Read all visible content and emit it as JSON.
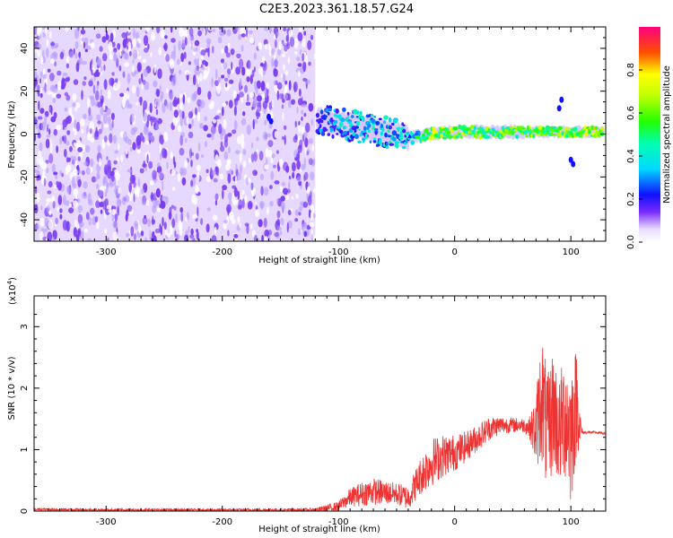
{
  "title": "C2E3.2023.361.18.57.G24",
  "colors": {
    "snr_line": "#ee3333",
    "spectro_noise": "#7a3cf2",
    "spectro_pale": "#e6d8ff"
  },
  "chart_data": [
    {
      "type": "heatmap",
      "xlabel": "Height of straight line (km)",
      "ylabel": "Frequency (Hz)",
      "xlim": [
        -362,
        130
      ],
      "ylim": [
        -50,
        50
      ],
      "xticks": [
        -300,
        -200,
        -100,
        0,
        100
      ],
      "xtick_labels": [
        "-300",
        "-200",
        "-100",
        "0",
        "100"
      ],
      "yticks": [
        -40,
        -20,
        0,
        20,
        40
      ],
      "ytick_labels": [
        "-40",
        "-20",
        "0",
        "20",
        "40"
      ],
      "noise_region_xmax": -120,
      "signal_track": [
        {
          "x": -160,
          "y": 8,
          "amp": 0.35
        },
        {
          "x": -120,
          "y": 7,
          "amp": 0.35
        },
        {
          "x": -100,
          "y": 5,
          "amp": 0.45
        },
        {
          "x": -80,
          "y": 3,
          "amp": 0.45
        },
        {
          "x": -60,
          "y": 1,
          "amp": 0.5
        },
        {
          "x": -40,
          "y": -2,
          "amp": 0.5
        },
        {
          "x": -20,
          "y": 0,
          "amp": 0.8
        },
        {
          "x": 0,
          "y": 1,
          "amp": 0.75
        },
        {
          "x": 20,
          "y": 1,
          "amp": 0.7
        },
        {
          "x": 40,
          "y": 1,
          "amp": 0.7
        },
        {
          "x": 60,
          "y": 1,
          "amp": 0.75
        },
        {
          "x": 80,
          "y": 1,
          "amp": 0.7
        },
        {
          "x": 100,
          "y": 1,
          "amp": 0.75
        },
        {
          "x": 125,
          "y": 1,
          "amp": 0.85
        }
      ],
      "colorbar": {
        "label": "Normalized spectral amplitude",
        "ticks": [
          0.0,
          0.2,
          0.4,
          0.6,
          0.8
        ],
        "tick_labels": [
          "0.0",
          "0.2",
          "0.4",
          "0.6",
          "0.8"
        ],
        "range": [
          0,
          1
        ]
      }
    },
    {
      "type": "line",
      "xlabel": "Height of straight line (km)",
      "ylabel": "SNR (10 * v/v)",
      "multiplier": "(x10",
      "multiplier_exp": "4",
      "multiplier_close": ")",
      "xlim": [
        -362,
        130
      ],
      "ylim": [
        0,
        3.5
      ],
      "xticks": [
        -300,
        -200,
        -100,
        0,
        100
      ],
      "xtick_labels": [
        "-300",
        "-200",
        "-100",
        "0",
        "100"
      ],
      "yticks": [
        0,
        1,
        2,
        3
      ],
      "ytick_labels": [
        "0",
        "1",
        "2",
        "3"
      ],
      "series": [
        {
          "x": [
            -362,
            -300,
            -200,
            -120,
            -100,
            -90,
            -80,
            -70,
            -60,
            -50,
            -40,
            -30,
            -20,
            -10,
            0,
            10,
            20,
            30,
            40,
            50,
            60,
            65,
            70,
            75,
            80,
            85,
            90,
            95,
            100,
            105,
            108,
            110,
            120,
            130
          ],
          "y": [
            0.03,
            0.02,
            0.02,
            0.02,
            0.08,
            0.22,
            0.28,
            0.32,
            0.3,
            0.28,
            0.22,
            0.55,
            0.8,
            0.9,
            0.95,
            1.05,
            1.2,
            1.35,
            1.4,
            1.4,
            1.4,
            1.35,
            1.3,
            1.9,
            1.2,
            1.7,
            1.25,
            1.6,
            1.25,
            1.8,
            1.35,
            1.28,
            1.28,
            1.26
          ],
          "spread": [
            0.02,
            0.02,
            0.02,
            0.03,
            0.08,
            0.15,
            0.2,
            0.22,
            0.2,
            0.18,
            0.2,
            0.3,
            0.4,
            0.35,
            0.3,
            0.25,
            0.22,
            0.2,
            0.15,
            0.12,
            0.12,
            0.2,
            0.6,
            1.1,
            1.0,
            1.0,
            0.9,
            1.1,
            1.2,
            0.9,
            0.3,
            0.03,
            0.02,
            0.02
          ]
        }
      ]
    }
  ]
}
